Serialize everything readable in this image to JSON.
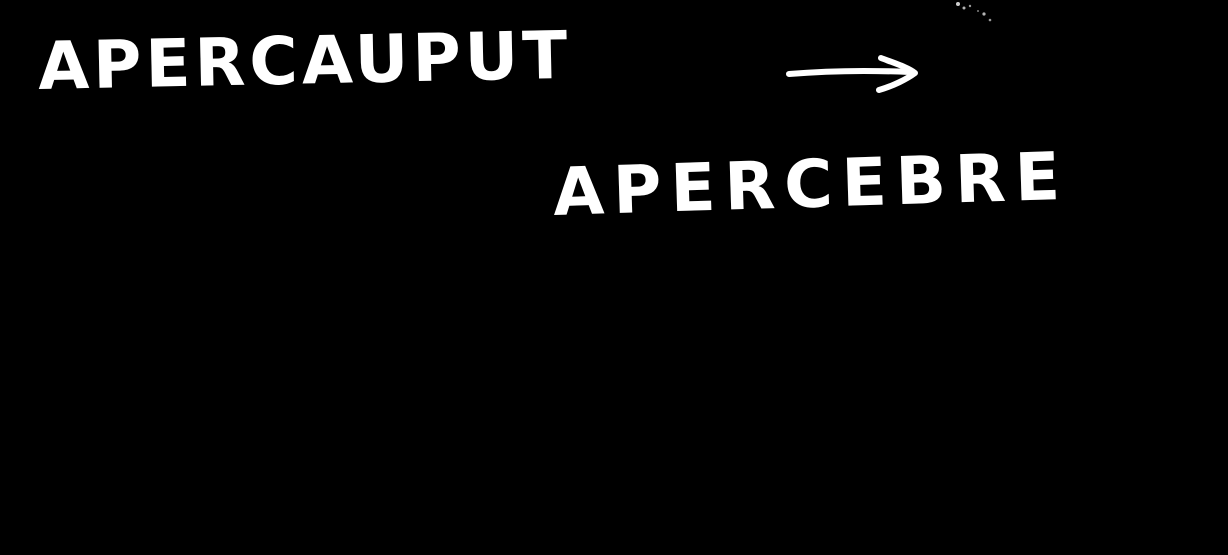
{
  "handwriting": {
    "line_1": "APERCAUPUT",
    "line_2": "APERCEBRE"
  },
  "colors": {
    "background": "#000000",
    "ink": "#ffffff"
  },
  "icons": {
    "arrow": "arrow-right-icon"
  }
}
